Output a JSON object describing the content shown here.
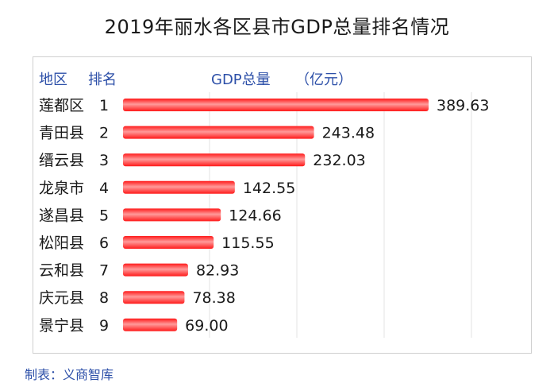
{
  "title": "2019年丽水各区县市GDP总量排名情况",
  "header": {
    "region_label": "地区",
    "rank_label": "排名",
    "gdp_label": "GDP总量",
    "unit_label": "（亿元）"
  },
  "credit": "制表：义商智库",
  "colors": {
    "bar": "#ff1a1a",
    "bar_highlight": "#ff9a9a",
    "header_text": "#2c4fa8",
    "gridline": "#e3e3e3"
  },
  "chart_data": {
    "type": "bar",
    "orientation": "horizontal",
    "title": "2019年丽水各区县市GDP总量排名情况",
    "categories": [
      "莲都区",
      "青田县",
      "缙云县",
      "龙泉市",
      "遂昌县",
      "松阳县",
      "云和县",
      "庆元县",
      "景宁县"
    ],
    "ranks": [
      "1",
      "2",
      "3",
      "4",
      "5",
      "6",
      "7",
      "8",
      "9"
    ],
    "values": [
      389.63,
      243.48,
      232.03,
      142.55,
      124.66,
      115.55,
      82.93,
      78.38,
      69.0
    ],
    "value_labels": [
      "389.63",
      "243.48",
      "232.03",
      "142.55",
      "124.66",
      "115.55",
      "82.93",
      "78.38",
      "69.00"
    ],
    "xlim": [
      0,
      400
    ],
    "grid": true
  }
}
